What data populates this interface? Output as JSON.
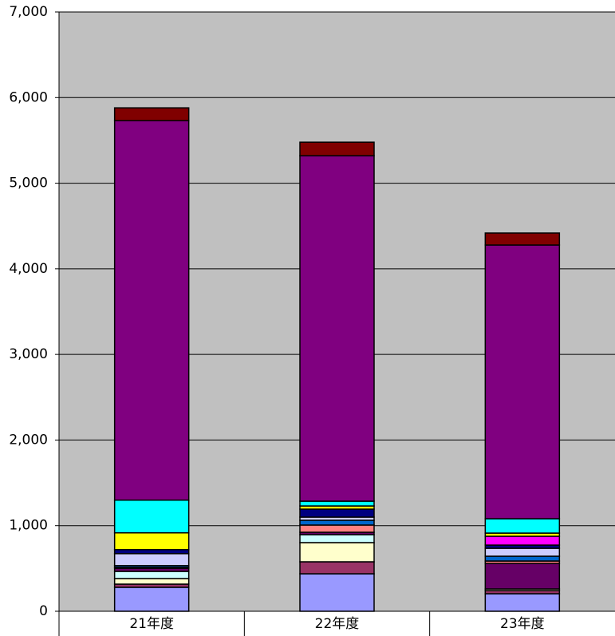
{
  "chart_data": {
    "type": "stacked_bar",
    "categories": [
      "21年度",
      "22年度",
      "23年度"
    ],
    "series": [
      {
        "color": "#9999FF",
        "values": [
          280,
          438,
          205
        ]
      },
      {
        "color": "#993366",
        "values": [
          37,
          140,
          37
        ]
      },
      {
        "color": "#FFFFCC",
        "values": [
          65,
          224,
          19
        ]
      },
      {
        "color": "#CCFFFF",
        "values": [
          84,
          93,
          0
        ]
      },
      {
        "color": "#660066",
        "values": [
          37,
          28,
          298
        ]
      },
      {
        "color": "#FF8080",
        "values": [
          10,
          84,
          28
        ]
      },
      {
        "color": "#0066CC",
        "values": [
          20,
          56,
          56
        ]
      },
      {
        "color": "#CCCCFF",
        "values": [
          140,
          37,
          93
        ]
      },
      {
        "color": "#000080",
        "values": [
          47,
          93,
          37
        ]
      },
      {
        "color": "#FF00FF",
        "values": [
          0,
          0,
          103
        ]
      },
      {
        "color": "#FFFF00",
        "values": [
          196,
          37,
          37
        ]
      },
      {
        "color": "#00FFFF",
        "values": [
          382,
          56,
          168
        ]
      },
      {
        "color": "#800080",
        "values": [
          4432,
          4035,
          3197
        ]
      },
      {
        "color": "#800000",
        "values": [
          150,
          158,
          140
        ]
      }
    ],
    "ylim": [
      0,
      7000
    ],
    "yticks": [
      0,
      {
        "value": 1000,
        "label": "1,000"
      },
      {
        "value": 2000,
        "label": "2,000"
      },
      {
        "value": 3000,
        "label": "3,000"
      },
      {
        "value": 4000,
        "label": "4,000"
      },
      {
        "value": 5000,
        "label": "5,000"
      },
      {
        "value": 6000,
        "label": "6,000"
      },
      {
        "value": 7000,
        "label": "7,000"
      }
    ],
    "grid": true,
    "plot_background": "#C0C0C0"
  }
}
